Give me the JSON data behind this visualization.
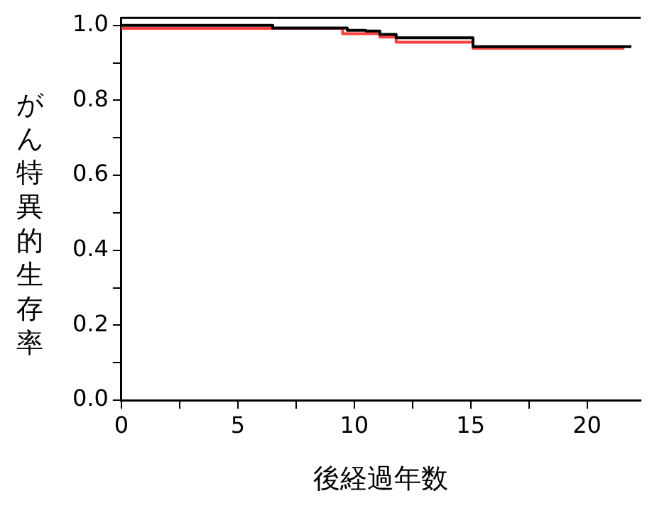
{
  "chart_data": {
    "type": "step",
    "xlabel": "後経過年数",
    "ylabel": "がん特異的生存率",
    "xlim": [
      0,
      22.3
    ],
    "ylim": [
      0,
      1.02
    ],
    "xticks": [
      0,
      {
        "value": 2.5,
        "label": null
      },
      5,
      {
        "value": 7.5,
        "label": null
      },
      10,
      {
        "value": 12.5,
        "label": null
      },
      15,
      {
        "value": 17.5,
        "label": null
      },
      20
    ],
    "yticks": [
      {
        "value": 0,
        "label": "0.0"
      },
      {
        "value": 0.1,
        "label": null
      },
      {
        "value": 0.2,
        "label": "0.2"
      },
      {
        "value": 0.3,
        "label": null
      },
      {
        "value": 0.4,
        "label": "0.4"
      },
      {
        "value": 0.5,
        "label": null
      },
      {
        "value": 0.6,
        "label": "0.6"
      },
      {
        "value": 0.7,
        "label": null
      },
      {
        "value": 0.8,
        "label": "0.8"
      },
      {
        "value": 0.9,
        "label": null
      },
      {
        "value": 1,
        "label": "1.0"
      }
    ],
    "grid": false,
    "legend": false,
    "marker": "none",
    "line_style": "solid",
    "series": [
      {
        "color": "#000000",
        "x": [
          0,
          6.5,
          9.7,
          10.5,
          11.1,
          11.8,
          15.1,
          21.9
        ],
        "values": [
          1.0,
          0.993,
          0.987,
          0.985,
          0.976,
          0.967,
          0.943,
          0.943
        ]
      },
      {
        "color": "#ff4040",
        "x": [
          0,
          9.5,
          11.1,
          11.8,
          15.1,
          21.6
        ],
        "values": [
          0.992,
          0.978,
          0.969,
          0.955,
          0.939,
          0.939
        ]
      }
    ]
  }
}
